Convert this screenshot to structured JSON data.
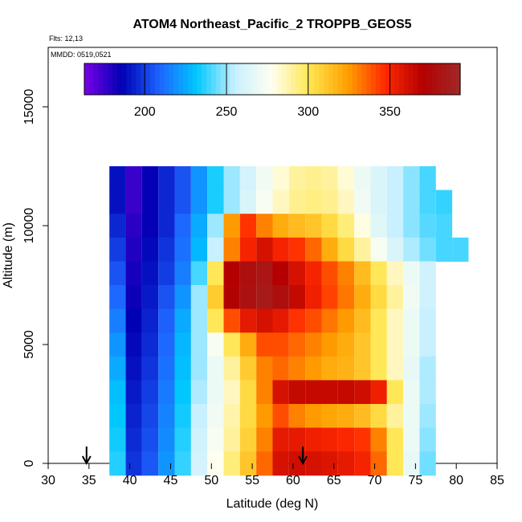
{
  "chart_data": {
    "type": "heatmap",
    "title": "ATOM4 Northeast_Pacific_2 TROPPB_GEOS5",
    "flights_label": "Flts: 12,13",
    "dates_label": "MMDD: 0519,0521",
    "xlabel": "Latitude (deg N)",
    "ylabel": "Altitude (m)",
    "xlim": [
      30,
      85
    ],
    "ylim": [
      0,
      17500
    ],
    "x_ticks": [
      "30",
      "35",
      "40",
      "45",
      "50",
      "55",
      "60",
      "65",
      "70",
      "75",
      "80",
      "85"
    ],
    "y_ticks": [
      "0",
      "5000",
      "10000",
      "15000"
    ],
    "colorbar": {
      "range": [
        163,
        393
      ],
      "ticks": [
        "200",
        "250",
        "300",
        "350"
      ],
      "colors": [
        "#7a00e6",
        "#0000b4",
        "#1e64ff",
        "#00c8ff",
        "#c8f0ff",
        "#fffff0",
        "#ffe650",
        "#ffa000",
        "#ff2800",
        "#b40000",
        "#a02828"
      ]
    },
    "arrows_at_latitude": [
      34.7,
      61.2
    ],
    "latitude_bins": [
      38.5,
      40.5,
      42.5,
      44.5,
      46.5,
      48.5,
      50.5,
      52.5,
      54.5,
      56.5,
      58.5,
      60.5,
      62.5,
      64.5,
      66.5,
      68.5,
      70.5,
      72.5,
      74.5,
      76.5,
      78.5,
      80.5
    ],
    "altitude_bands": [
      {
        "altitude": 12000,
        "values": [
          190,
          175,
          185,
          195,
          205,
          220,
          235,
          250,
          260,
          272,
          282,
          290,
          292,
          290,
          282,
          270,
          262,
          255,
          248,
          240,
          null,
          null
        ]
      },
      {
        "altitude": 11000,
        "values": [
          190,
          175,
          185,
          195,
          205,
          220,
          235,
          250,
          262,
          275,
          285,
          292,
          294,
          292,
          285,
          272,
          262,
          255,
          248,
          240,
          238,
          null
        ]
      },
      {
        "altitude": 10000,
        "values": [
          195,
          178,
          185,
          195,
          210,
          225,
          250,
          325,
          345,
          330,
          320,
          315,
          312,
          305,
          295,
          280,
          265,
          255,
          248,
          242,
          240,
          null
        ]
      },
      {
        "altitude": 9000,
        "values": [
          200,
          180,
          188,
          198,
          212,
          228,
          255,
          330,
          350,
          360,
          350,
          345,
          335,
          320,
          305,
          290,
          275,
          262,
          252,
          245,
          240,
          240
        ]
      },
      {
        "altitude": 8000,
        "values": [
          205,
          182,
          190,
          200,
          215,
          240,
          300,
          370,
          378,
          382,
          370,
          360,
          350,
          340,
          330,
          315,
          300,
          285,
          270,
          258,
          null,
          null
        ]
      },
      {
        "altitude": 7000,
        "values": [
          210,
          184,
          192,
          205,
          220,
          250,
          310,
          372,
          380,
          385,
          378,
          365,
          352,
          342,
          332,
          320,
          305,
          290,
          272,
          258,
          null,
          null
        ]
      },
      {
        "altitude": 6000,
        "values": [
          215,
          186,
          194,
          208,
          225,
          250,
          300,
          340,
          355,
          360,
          355,
          345,
          340,
          332,
          325,
          315,
          300,
          285,
          270,
          255,
          null,
          null
        ]
      },
      {
        "altitude": 5000,
        "values": [
          220,
          188,
          196,
          210,
          228,
          250,
          275,
          300,
          320,
          340,
          340,
          335,
          330,
          325,
          320,
          312,
          300,
          285,
          270,
          255,
          null,
          null
        ]
      },
      {
        "altitude": 4000,
        "values": [
          225,
          190,
          198,
          212,
          230,
          250,
          270,
          290,
          310,
          330,
          335,
          330,
          325,
          320,
          318,
          312,
          300,
          285,
          268,
          252,
          null,
          null
        ]
      },
      {
        "altitude": 3000,
        "values": [
          230,
          192,
          200,
          214,
          232,
          252,
          270,
          285,
          305,
          330,
          360,
          365,
          365,
          365,
          365,
          362,
          352,
          300,
          270,
          252,
          null,
          null
        ]
      },
      {
        "altitude": 2000,
        "values": [
          232,
          194,
          202,
          216,
          234,
          255,
          272,
          288,
          305,
          325,
          340,
          330,
          325,
          322,
          320,
          315,
          305,
          290,
          270,
          250,
          null,
          null
        ]
      },
      {
        "altitude": 1000,
        "values": [
          234,
          196,
          204,
          218,
          236,
          258,
          275,
          290,
          308,
          330,
          355,
          355,
          352,
          350,
          348,
          345,
          330,
          300,
          270,
          248,
          null,
          null
        ]
      },
      {
        "altitude": 0,
        "values": [
          236,
          198,
          206,
          220,
          238,
          260,
          278,
          295,
          312,
          335,
          360,
          362,
          360,
          358,
          355,
          350,
          335,
          300,
          268,
          245,
          null,
          null
        ]
      }
    ]
  }
}
